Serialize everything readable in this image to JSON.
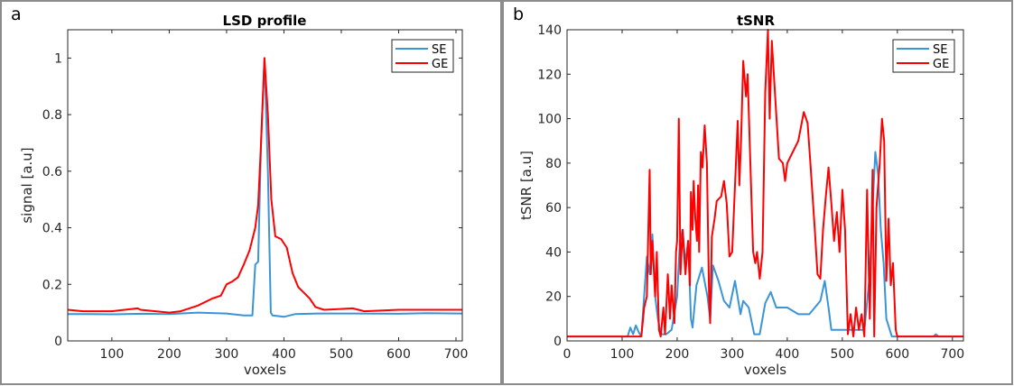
{
  "colors": {
    "SE": "#3a94d8",
    "GE": "#ff0000",
    "axis": "#262626",
    "frame": "#8c8c8c"
  },
  "chart_data": [
    {
      "type": "line",
      "panel_label": "a",
      "title": "LSD profile",
      "xlabel": "voxels",
      "ylabel": "signal [a.u]",
      "xlim": [
        23,
        711
      ],
      "ylim": [
        0,
        1.1
      ],
      "xticks": [
        100,
        200,
        300,
        400,
        500,
        600,
        700
      ],
      "yticks": [
        0,
        0.2,
        0.4,
        0.6,
        0.8,
        1
      ],
      "ytick_labels": [
        "0",
        "0.2",
        "0.4",
        "0.6",
        "0.8",
        "1"
      ],
      "grid": false,
      "legend": "top-right",
      "series": [
        {
          "name": "SE",
          "x": [
            23,
            60,
            100,
            150,
            200,
            250,
            300,
            330,
            345,
            350,
            355,
            360,
            366,
            372,
            377,
            380,
            400,
            420,
            460,
            520,
            600,
            650,
            711
          ],
          "y": [
            0.095,
            0.095,
            0.094,
            0.096,
            0.095,
            0.1,
            0.097,
            0.09,
            0.09,
            0.27,
            0.28,
            0.7,
            1.0,
            0.6,
            0.1,
            0.09,
            0.085,
            0.095,
            0.097,
            0.097,
            0.096,
            0.098,
            0.097
          ]
        },
        {
          "name": "GE",
          "x": [
            23,
            50,
            100,
            145,
            150,
            200,
            220,
            250,
            275,
            290,
            300,
            310,
            320,
            330,
            340,
            350,
            355,
            360,
            366,
            372,
            378,
            385,
            395,
            405,
            415,
            425,
            435,
            445,
            455,
            470,
            520,
            540,
            600,
            711
          ],
          "y": [
            0.11,
            0.105,
            0.105,
            0.115,
            0.11,
            0.1,
            0.105,
            0.125,
            0.15,
            0.16,
            0.2,
            0.21,
            0.225,
            0.27,
            0.32,
            0.4,
            0.48,
            0.7,
            1.0,
            0.8,
            0.5,
            0.37,
            0.36,
            0.33,
            0.24,
            0.19,
            0.17,
            0.15,
            0.12,
            0.11,
            0.115,
            0.105,
            0.11,
            0.11
          ]
        }
      ]
    },
    {
      "type": "line",
      "panel_label": "b",
      "title": "tSNR",
      "xlabel": "voxels",
      "ylabel": "tSNR [a.u]",
      "xlim": [
        0,
        720
      ],
      "ylim": [
        0,
        140
      ],
      "xticks": [
        0,
        100,
        200,
        300,
        400,
        500,
        600,
        700
      ],
      "yticks": [
        0,
        20,
        40,
        60,
        80,
        100,
        120,
        140
      ],
      "ytick_labels": [
        "0",
        "20",
        "40",
        "60",
        "80",
        "100",
        "120",
        "140"
      ],
      "grid": false,
      "legend": "top-right",
      "series": [
        {
          "name": "SE",
          "x": [
            0,
            110,
            115,
            120,
            125,
            130,
            135,
            145,
            150,
            155,
            160,
            165,
            170,
            180,
            190,
            200,
            205,
            210,
            215,
            220,
            225,
            228,
            235,
            245,
            255,
            260,
            265,
            275,
            285,
            295,
            305,
            315,
            320,
            330,
            340,
            350,
            360,
            370,
            380,
            400,
            420,
            440,
            460,
            468,
            475,
            480,
            500,
            520,
            540,
            550,
            555,
            560,
            565,
            570,
            575,
            580,
            590,
            665,
            670,
            675,
            720
          ],
          "y": [
            2,
            2,
            6,
            3,
            7,
            4,
            2,
            38,
            30,
            48,
            20,
            10,
            3,
            3,
            5,
            20,
            45,
            50,
            35,
            45,
            10,
            6,
            25,
            33,
            20,
            10,
            34,
            27,
            18,
            15,
            27,
            12,
            18,
            15,
            3,
            3,
            17,
            22,
            15,
            15,
            12,
            12,
            18,
            27,
            15,
            5,
            5,
            5,
            5,
            30,
            60,
            85,
            75,
            50,
            35,
            10,
            2,
            2,
            3,
            2,
            2
          ]
        },
        {
          "name": "GE",
          "x": [
            0,
            135,
            140,
            145,
            150,
            152,
            155,
            160,
            163,
            167,
            170,
            175,
            178,
            183,
            187,
            190,
            195,
            198,
            200,
            203,
            206,
            210,
            215,
            220,
            223,
            225,
            228,
            230,
            233,
            236,
            238,
            240,
            243,
            246,
            250,
            254,
            258,
            260,
            263,
            268,
            272,
            280,
            285,
            290,
            295,
            300,
            305,
            310,
            313,
            316,
            320,
            325,
            328,
            333,
            338,
            342,
            345,
            350,
            355,
            360,
            365,
            368,
            372,
            378,
            385,
            392,
            396,
            400,
            410,
            420,
            430,
            437,
            442,
            450,
            455,
            460,
            465,
            470,
            475,
            480,
            485,
            490,
            495,
            500,
            505,
            510,
            515,
            520,
            525,
            530,
            535,
            540,
            545,
            550,
            555,
            558,
            562,
            568,
            572,
            576,
            580,
            584,
            588,
            592,
            597,
            600,
            720
          ],
          "y": [
            2,
            2,
            15,
            20,
            77,
            30,
            45,
            20,
            40,
            5,
            2,
            15,
            3,
            30,
            10,
            25,
            8,
            40,
            45,
            100,
            30,
            50,
            30,
            45,
            25,
            67,
            50,
            72,
            55,
            45,
            70,
            40,
            85,
            78,
            97,
            80,
            20,
            8,
            47,
            55,
            63,
            65,
            72,
            62,
            38,
            40,
            70,
            99,
            70,
            90,
            126,
            110,
            120,
            80,
            40,
            35,
            40,
            28,
            40,
            112,
            140,
            100,
            135,
            110,
            82,
            80,
            72,
            80,
            85,
            90,
            103,
            98,
            80,
            50,
            30,
            28,
            50,
            65,
            78,
            62,
            45,
            58,
            40,
            68,
            50,
            3,
            12,
            2,
            15,
            5,
            12,
            2,
            68,
            10,
            77,
            2,
            60,
            80,
            100,
            90,
            27,
            55,
            25,
            35,
            5,
            2,
            2
          ]
        }
      ]
    }
  ]
}
